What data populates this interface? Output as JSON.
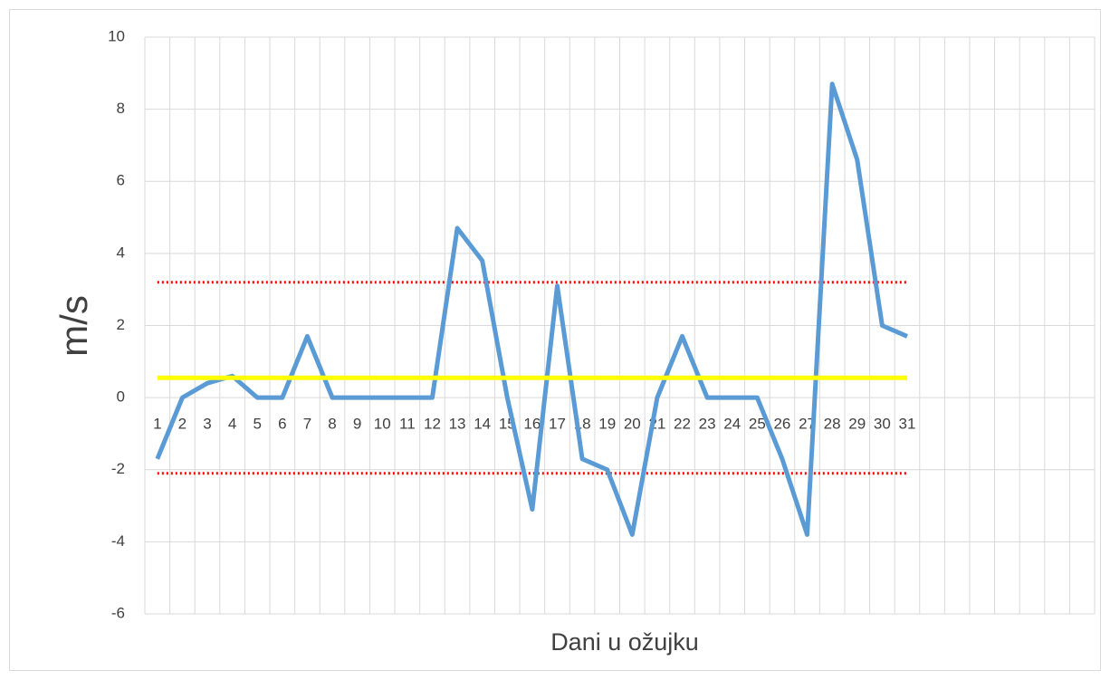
{
  "chart_data": {
    "type": "line",
    "y_label": "m/s",
    "x_label": "Dani u ožujku",
    "categories": [
      "1",
      "2",
      "3",
      "4",
      "5",
      "6",
      "7",
      "8",
      "9",
      "10",
      "11",
      "12",
      "13",
      "14",
      "15",
      "16",
      "17",
      "18",
      "19",
      "20",
      "21",
      "22",
      "23",
      "24",
      "25",
      "26",
      "27",
      "28",
      "29",
      "30",
      "31",
      null,
      null,
      null,
      null,
      null,
      null,
      null
    ],
    "series": [
      {
        "color": "#5b9bd5",
        "values": [
          -1.7,
          0,
          0.4,
          0.6,
          0,
          0,
          1.7,
          0,
          0,
          0,
          0,
          0,
          4.7,
          3.8,
          0,
          -3.1,
          3.1,
          -1.7,
          -2.0,
          -3.8,
          0,
          1.7,
          0,
          0,
          0,
          -1.7,
          -3.8,
          8.7,
          6.6,
          2.0,
          1.7,
          null,
          null,
          null,
          null,
          null,
          null,
          null
        ]
      }
    ],
    "reference_lines": [
      {
        "value": 0.55,
        "color": "#ffff00",
        "style": "solid"
      },
      {
        "value": 3.2,
        "color": "#ff0000",
        "style": "dotted"
      },
      {
        "value": -2.1,
        "color": "#ff0000",
        "style": "dotted"
      }
    ],
    "ylim": [
      -6,
      10
    ],
    "yticks": [
      -6,
      -4,
      -2,
      0,
      2,
      4,
      6,
      8,
      10
    ],
    "grid": true
  }
}
